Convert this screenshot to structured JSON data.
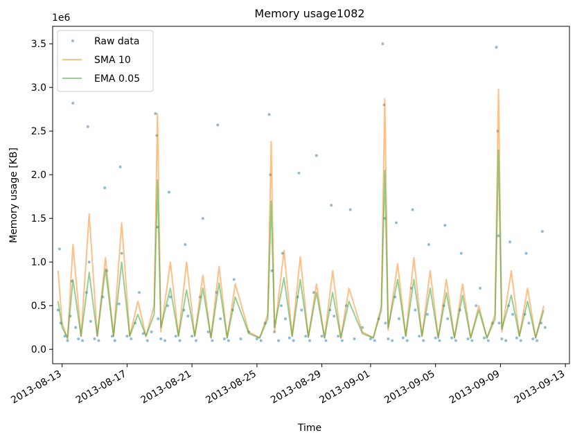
{
  "chart_data": {
    "type": "line",
    "title": "Memory usage1082",
    "xlabel": "Time",
    "ylabel": "Memory usage [KB]",
    "y_offset_label": "1e6",
    "y_scale_factor": 1000000,
    "xlim": [
      "2013-08-12T10:00",
      "2013-09-13T06:00"
    ],
    "ylim": [
      -165000,
      3700000
    ],
    "x_ticks": [
      "2013-08-13",
      "2013-08-17",
      "2013-08-21",
      "2013-08-25",
      "2013-08-29",
      "2013-09-01",
      "2013-09-05",
      "2013-09-09",
      "2013-09-13"
    ],
    "x_tick_labels": [
      "2013-08-13",
      "2013-08-17",
      "2013-08-21",
      "2013-08-25",
      "2013-08-29",
      "2013-09-01",
      "2013-09-05",
      "2013-09-09",
      "2013-09-13"
    ],
    "y_ticks": [
      0,
      500000,
      1000000,
      1500000,
      2000000,
      2500000,
      3000000,
      3500000
    ],
    "y_tick_labels": [
      "0.0",
      "0.5",
      "1.0",
      "1.5",
      "2.0",
      "2.5",
      "3.0",
      "3.5"
    ],
    "grid": false,
    "legend": {
      "position": "top-left"
    },
    "series": [
      {
        "name": "Raw data",
        "style": "scatter",
        "color": "#1f77b4",
        "x": [
          "2013-08-12T18:00",
          "2013-08-12T20:00",
          "2013-08-12T22:00",
          "2013-08-13T04:00",
          "2013-08-13T08:00",
          "2013-08-13T12:00",
          "2013-08-13T14:00",
          "2013-08-13T16:00",
          "2013-08-13T20:00",
          "2013-08-14T00:00",
          "2013-08-14T06:00",
          "2013-08-14T12:00",
          "2013-08-14T14:00",
          "2013-08-14T16:00",
          "2013-08-14T18:00",
          "2013-08-15T00:00",
          "2013-08-15T06:00",
          "2013-08-15T12:00",
          "2013-08-15T15:00",
          "2013-08-15T18:00",
          "2013-08-16T02:00",
          "2013-08-16T06:00",
          "2013-08-16T12:00",
          "2013-08-16T14:00",
          "2013-08-16T16:00",
          "2013-08-17T00:00",
          "2013-08-17T06:00",
          "2013-08-17T12:00",
          "2013-08-17T18:00",
          "2013-08-18T00:00",
          "2013-08-18T06:00",
          "2013-08-18T12:00",
          "2013-08-18T18:00",
          "2013-08-18T20:00",
          "2013-08-18T21:00",
          "2013-08-18T22:00",
          "2013-08-19T02:00",
          "2013-08-19T08:00",
          "2013-08-19T12:00",
          "2013-08-19T14:00",
          "2013-08-19T16:00",
          "2013-08-20T00:00",
          "2013-08-20T06:00",
          "2013-08-20T12:00",
          "2013-08-20T14:00",
          "2013-08-20T18:00",
          "2013-08-21T00:00",
          "2013-08-21T06:00",
          "2013-08-21T12:00",
          "2013-08-21T16:00",
          "2013-08-22T00:00",
          "2013-08-22T06:00",
          "2013-08-22T12:00",
          "2013-08-22T14:00",
          "2013-08-22T18:00",
          "2013-08-23T00:00",
          "2013-08-23T06:00",
          "2013-08-23T12:00",
          "2013-08-23T14:00",
          "2013-08-24T00:00",
          "2013-08-24T12:00",
          "2013-08-25T00:00",
          "2013-08-25T06:00",
          "2013-08-25T12:00",
          "2013-08-25T18:00",
          "2013-08-25T20:00",
          "2013-08-25T22:00",
          "2013-08-26T02:00",
          "2013-08-26T08:00",
          "2013-08-26T12:00",
          "2013-08-26T14:00",
          "2013-08-26T18:00",
          "2013-08-27T00:00",
          "2013-08-27T06:00",
          "2013-08-27T12:00",
          "2013-08-27T14:00",
          "2013-08-27T18:00",
          "2013-08-28T00:00",
          "2013-08-28T06:00",
          "2013-08-28T12:00",
          "2013-08-28T16:00",
          "2013-08-29T00:00",
          "2013-08-29T06:00",
          "2013-08-29T12:00",
          "2013-08-29T14:00",
          "2013-08-29T18:00",
          "2013-08-30T00:00",
          "2013-08-30T06:00",
          "2013-08-30T12:00",
          "2013-08-30T18:00",
          "2013-08-31T00:00",
          "2013-08-31T12:00",
          "2013-09-01T00:00",
          "2013-09-01T06:00",
          "2013-09-01T12:00",
          "2013-09-01T18:00",
          "2013-09-01T20:00",
          "2013-09-01T21:00",
          "2013-09-01T22:00",
          "2013-09-02T02:00",
          "2013-09-02T08:00",
          "2013-09-02T12:00",
          "2013-09-02T14:00",
          "2013-09-02T18:00",
          "2013-09-03T00:00",
          "2013-09-03T06:00",
          "2013-09-03T12:00",
          "2013-09-03T14:00",
          "2013-09-03T18:00",
          "2013-09-04T00:00",
          "2013-09-04T06:00",
          "2013-09-04T12:00",
          "2013-09-04T14:00",
          "2013-09-05T00:00",
          "2013-09-05T06:00",
          "2013-09-05T12:00",
          "2013-09-05T14:00",
          "2013-09-05T18:00",
          "2013-09-06T00:00",
          "2013-09-06T06:00",
          "2013-09-06T12:00",
          "2013-09-06T14:00",
          "2013-09-07T00:00",
          "2013-09-07T06:00",
          "2013-09-07T12:00",
          "2013-09-07T18:00",
          "2013-09-08T00:00",
          "2013-09-08T06:00",
          "2013-09-08T12:00",
          "2013-09-08T18:00",
          "2013-09-08T20:00",
          "2013-09-08T21:00",
          "2013-09-08T22:00",
          "2013-09-09T02:00",
          "2013-09-09T08:00",
          "2013-09-09T12:00",
          "2013-09-09T14:00",
          "2013-09-09T18:00",
          "2013-09-10T00:00",
          "2013-09-10T06:00",
          "2013-09-10T12:00",
          "2013-09-10T14:00",
          "2013-09-10T18:00",
          "2013-09-11T00:00",
          "2013-09-11T06:00",
          "2013-09-11T12:00",
          "2013-09-11T14:00",
          "2013-09-11T18:00"
        ],
        "y": [
          450000,
          1150000,
          300000,
          150000,
          100000,
          380000,
          780000,
          2820000,
          250000,
          120000,
          100000,
          650000,
          2550000,
          1000000,
          320000,
          120000,
          100000,
          600000,
          1850000,
          900000,
          150000,
          100000,
          520000,
          2090000,
          1100000,
          150000,
          120000,
          300000,
          650000,
          180000,
          100000,
          200000,
          2700000,
          2450000,
          1400000,
          350000,
          120000,
          100000,
          500000,
          1800000,
          600000,
          150000,
          100000,
          450000,
          1200000,
          380000,
          150000,
          100000,
          600000,
          1500000,
          200000,
          100000,
          650000,
          2570000,
          350000,
          120000,
          100000,
          450000,
          800000,
          120000,
          200000,
          120000,
          100000,
          300000,
          2690000,
          2000000,
          900000,
          200000,
          100000,
          500000,
          1100000,
          350000,
          130000,
          100000,
          600000,
          2020000,
          450000,
          150000,
          100000,
          650000,
          2220000,
          150000,
          100000,
          450000,
          1650000,
          380000,
          150000,
          100000,
          500000,
          1600000,
          120000,
          250000,
          120000,
          100000,
          350000,
          3500000,
          2800000,
          1500000,
          300000,
          120000,
          100000,
          600000,
          1450000,
          350000,
          130000,
          100000,
          700000,
          1600000,
          450000,
          150000,
          100000,
          400000,
          1200000,
          130000,
          100000,
          500000,
          1420000,
          350000,
          130000,
          100000,
          450000,
          1100000,
          120000,
          100000,
          500000,
          700000,
          130000,
          100000,
          300000,
          3460000,
          2500000,
          1300000,
          300000,
          120000,
          100000,
          500000,
          1230000,
          400000,
          130000,
          100000,
          400000,
          1100000,
          300000,
          120000,
          100000,
          300000,
          1350000,
          250000
        ]
      },
      {
        "name": "SMA 10",
        "style": "line",
        "color": "#ff7f0e",
        "x": [
          "2013-08-12T18:00",
          "2013-08-13T00:00",
          "2013-08-13T08:00",
          "2013-08-13T16:00",
          "2013-08-14T04:00",
          "2013-08-14T16:00",
          "2013-08-15T04:00",
          "2013-08-15T16:00",
          "2013-08-16T04:00",
          "2013-08-16T16:00",
          "2013-08-17T04:00",
          "2013-08-17T16:00",
          "2013-08-18T04:00",
          "2013-08-18T16:00",
          "2013-08-18T21:00",
          "2013-08-19T02:00",
          "2013-08-19T16:00",
          "2013-08-20T04:00",
          "2013-08-20T16:00",
          "2013-08-21T04:00",
          "2013-08-21T16:00",
          "2013-08-22T04:00",
          "2013-08-22T16:00",
          "2013-08-23T04:00",
          "2013-08-23T16:00",
          "2013-08-24T12:00",
          "2013-08-25T04:00",
          "2013-08-25T16:00",
          "2013-08-25T21:00",
          "2013-08-26T02:00",
          "2013-08-26T16:00",
          "2013-08-27T04:00",
          "2013-08-27T16:00",
          "2013-08-28T04:00",
          "2013-08-28T16:00",
          "2013-08-29T04:00",
          "2013-08-29T16:00",
          "2013-08-30T04:00",
          "2013-08-30T16:00",
          "2013-08-31T12:00",
          "2013-09-01T04:00",
          "2013-09-01T16:00",
          "2013-09-01T21:00",
          "2013-09-02T02:00",
          "2013-09-02T16:00",
          "2013-09-03T04:00",
          "2013-09-03T16:00",
          "2013-09-04T04:00",
          "2013-09-04T16:00",
          "2013-09-05T04:00",
          "2013-09-05T16:00",
          "2013-09-06T04:00",
          "2013-09-06T16:00",
          "2013-09-07T04:00",
          "2013-09-07T16:00",
          "2013-09-08T04:00",
          "2013-09-08T16:00",
          "2013-09-08T21:00",
          "2013-09-09T02:00",
          "2013-09-09T16:00",
          "2013-09-10T04:00",
          "2013-09-10T16:00",
          "2013-09-11T04:00",
          "2013-09-11T16:00"
        ],
        "y": [
          900000,
          300000,
          120000,
          1200000,
          150000,
          1550000,
          150000,
          1050000,
          150000,
          1450000,
          150000,
          550000,
          150000,
          500000,
          2700000,
          200000,
          1000000,
          150000,
          1000000,
          150000,
          850000,
          130000,
          950000,
          130000,
          750000,
          200000,
          130000,
          400000,
          2380000,
          200000,
          1130000,
          150000,
          1060000,
          140000,
          750000,
          130000,
          900000,
          130000,
          700000,
          200000,
          130000,
          500000,
          2870000,
          220000,
          980000,
          150000,
          1050000,
          150000,
          900000,
          130000,
          800000,
          130000,
          750000,
          130000,
          500000,
          130000,
          400000,
          2980000,
          200000,
          900000,
          150000,
          700000,
          130000,
          500000
        ]
      },
      {
        "name": "EMA 0.05",
        "style": "line",
        "color": "#2ca02c",
        "x": [
          "2013-08-12T18:00",
          "2013-08-13T00:00",
          "2013-08-13T08:00",
          "2013-08-13T16:00",
          "2013-08-14T04:00",
          "2013-08-14T16:00",
          "2013-08-15T04:00",
          "2013-08-15T16:00",
          "2013-08-16T04:00",
          "2013-08-16T16:00",
          "2013-08-17T04:00",
          "2013-08-17T16:00",
          "2013-08-18T04:00",
          "2013-08-18T16:00",
          "2013-08-18T21:00",
          "2013-08-19T02:00",
          "2013-08-19T16:00",
          "2013-08-20T04:00",
          "2013-08-20T16:00",
          "2013-08-21T04:00",
          "2013-08-21T16:00",
          "2013-08-22T04:00",
          "2013-08-22T16:00",
          "2013-08-23T04:00",
          "2013-08-23T16:00",
          "2013-08-24T12:00",
          "2013-08-25T04:00",
          "2013-08-25T16:00",
          "2013-08-25T21:00",
          "2013-08-26T02:00",
          "2013-08-26T16:00",
          "2013-08-27T04:00",
          "2013-08-27T16:00",
          "2013-08-28T04:00",
          "2013-08-28T16:00",
          "2013-08-29T04:00",
          "2013-08-29T16:00",
          "2013-08-30T04:00",
          "2013-08-30T16:00",
          "2013-08-31T12:00",
          "2013-09-01T04:00",
          "2013-09-01T16:00",
          "2013-09-01T21:00",
          "2013-09-02T02:00",
          "2013-09-02T16:00",
          "2013-09-03T04:00",
          "2013-09-03T16:00",
          "2013-09-04T04:00",
          "2013-09-04T16:00",
          "2013-09-05T04:00",
          "2013-09-05T16:00",
          "2013-09-06T04:00",
          "2013-09-06T16:00",
          "2013-09-07T04:00",
          "2013-09-07T16:00",
          "2013-09-08T04:00",
          "2013-09-08T16:00",
          "2013-09-08T21:00",
          "2013-09-09T02:00",
          "2013-09-09T16:00",
          "2013-09-10T04:00",
          "2013-09-10T16:00",
          "2013-09-11T04:00",
          "2013-09-11T16:00"
        ],
        "y": [
          550000,
          250000,
          130000,
          800000,
          150000,
          880000,
          150000,
          920000,
          150000,
          1000000,
          150000,
          400000,
          150000,
          400000,
          1940000,
          250000,
          700000,
          150000,
          680000,
          150000,
          700000,
          130000,
          760000,
          130000,
          600000,
          180000,
          130000,
          350000,
          1700000,
          250000,
          820000,
          150000,
          800000,
          140000,
          650000,
          130000,
          650000,
          130000,
          550000,
          180000,
          130000,
          450000,
          2050000,
          250000,
          800000,
          150000,
          800000,
          150000,
          700000,
          130000,
          650000,
          130000,
          620000,
          130000,
          450000,
          130000,
          350000,
          2280000,
          230000,
          620000,
          150000,
          550000,
          130000,
          450000
        ]
      }
    ]
  }
}
